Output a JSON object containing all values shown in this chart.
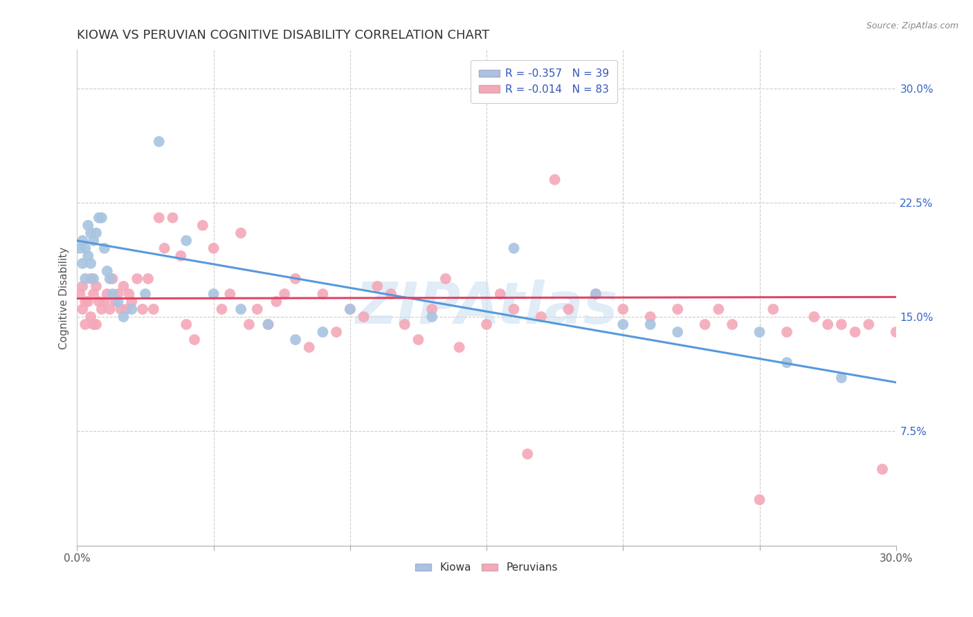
{
  "title": "KIOWA VS PERUVIAN COGNITIVE DISABILITY CORRELATION CHART",
  "source": "Source: ZipAtlas.com",
  "ylabel": "Cognitive Disability",
  "xlim": [
    0.0,
    0.3
  ],
  "ylim": [
    0.0,
    0.325
  ],
  "xticks": [
    0.0,
    0.05,
    0.1,
    0.15,
    0.2,
    0.25,
    0.3
  ],
  "xticklabels": [
    "0.0%",
    "",
    "",
    "",
    "",
    "",
    "30.0%"
  ],
  "yticks_right": [
    0.075,
    0.15,
    0.225,
    0.3
  ],
  "yticklabels_right": [
    "7.5%",
    "15.0%",
    "22.5%",
    "30.0%"
  ],
  "kiowa_R": -0.357,
  "kiowa_N": 39,
  "peruvian_R": -0.014,
  "peruvian_N": 83,
  "kiowa_color": "#a8c4e0",
  "peruvian_color": "#f4a8b8",
  "kiowa_line_color": "#5599dd",
  "peruvian_line_color": "#dd4466",
  "legend_text_color": "#3355bb",
  "watermark": "ZIPAtlas",
  "background_color": "#ffffff",
  "grid_color": "#cccccc",
  "title_fontsize": 13,
  "axis_label_fontsize": 11,
  "tick_fontsize": 11,
  "kiowa_x": [
    0.001,
    0.002,
    0.002,
    0.003,
    0.003,
    0.004,
    0.004,
    0.005,
    0.005,
    0.006,
    0.006,
    0.007,
    0.008,
    0.009,
    0.01,
    0.011,
    0.012,
    0.013,
    0.015,
    0.017,
    0.02,
    0.025,
    0.03,
    0.04,
    0.05,
    0.06,
    0.07,
    0.08,
    0.09,
    0.1,
    0.13,
    0.16,
    0.19,
    0.2,
    0.21,
    0.22,
    0.25,
    0.26,
    0.28
  ],
  "kiowa_y": [
    0.195,
    0.2,
    0.185,
    0.195,
    0.175,
    0.21,
    0.19,
    0.205,
    0.185,
    0.2,
    0.175,
    0.205,
    0.215,
    0.215,
    0.195,
    0.18,
    0.175,
    0.165,
    0.16,
    0.15,
    0.155,
    0.165,
    0.265,
    0.2,
    0.165,
    0.155,
    0.145,
    0.135,
    0.14,
    0.155,
    0.15,
    0.195,
    0.165,
    0.145,
    0.145,
    0.14,
    0.14,
    0.12,
    0.11
  ],
  "peruvian_x": [
    0.001,
    0.002,
    0.002,
    0.003,
    0.003,
    0.004,
    0.005,
    0.005,
    0.006,
    0.006,
    0.007,
    0.007,
    0.008,
    0.009,
    0.01,
    0.011,
    0.012,
    0.013,
    0.014,
    0.015,
    0.016,
    0.017,
    0.018,
    0.019,
    0.02,
    0.022,
    0.024,
    0.026,
    0.028,
    0.03,
    0.032,
    0.035,
    0.038,
    0.04,
    0.043,
    0.046,
    0.05,
    0.053,
    0.056,
    0.06,
    0.063,
    0.066,
    0.07,
    0.073,
    0.076,
    0.08,
    0.085,
    0.09,
    0.095,
    0.1,
    0.105,
    0.11,
    0.115,
    0.12,
    0.125,
    0.13,
    0.135,
    0.14,
    0.15,
    0.155,
    0.16,
    0.165,
    0.17,
    0.175,
    0.18,
    0.19,
    0.2,
    0.21,
    0.22,
    0.23,
    0.235,
    0.24,
    0.25,
    0.255,
    0.26,
    0.27,
    0.275,
    0.28,
    0.285,
    0.29,
    0.295,
    0.3,
    0.305
  ],
  "peruvian_y": [
    0.165,
    0.17,
    0.155,
    0.16,
    0.145,
    0.16,
    0.175,
    0.15,
    0.165,
    0.145,
    0.17,
    0.145,
    0.16,
    0.155,
    0.16,
    0.165,
    0.155,
    0.175,
    0.16,
    0.165,
    0.155,
    0.17,
    0.155,
    0.165,
    0.16,
    0.175,
    0.155,
    0.175,
    0.155,
    0.215,
    0.195,
    0.215,
    0.19,
    0.145,
    0.135,
    0.21,
    0.195,
    0.155,
    0.165,
    0.205,
    0.145,
    0.155,
    0.145,
    0.16,
    0.165,
    0.175,
    0.13,
    0.165,
    0.14,
    0.155,
    0.15,
    0.17,
    0.165,
    0.145,
    0.135,
    0.155,
    0.175,
    0.13,
    0.145,
    0.165,
    0.155,
    0.06,
    0.15,
    0.24,
    0.155,
    0.165,
    0.155,
    0.15,
    0.155,
    0.145,
    0.155,
    0.145,
    0.03,
    0.155,
    0.14,
    0.15,
    0.145,
    0.145,
    0.14,
    0.145,
    0.05,
    0.14,
    0.145
  ],
  "kiowa_trend_x": [
    0.0,
    0.3
  ],
  "kiowa_trend_y": [
    0.2,
    0.107
  ],
  "peruvian_trend_x": [
    0.0,
    0.3
  ],
  "peruvian_trend_y": [
    0.162,
    0.163
  ]
}
